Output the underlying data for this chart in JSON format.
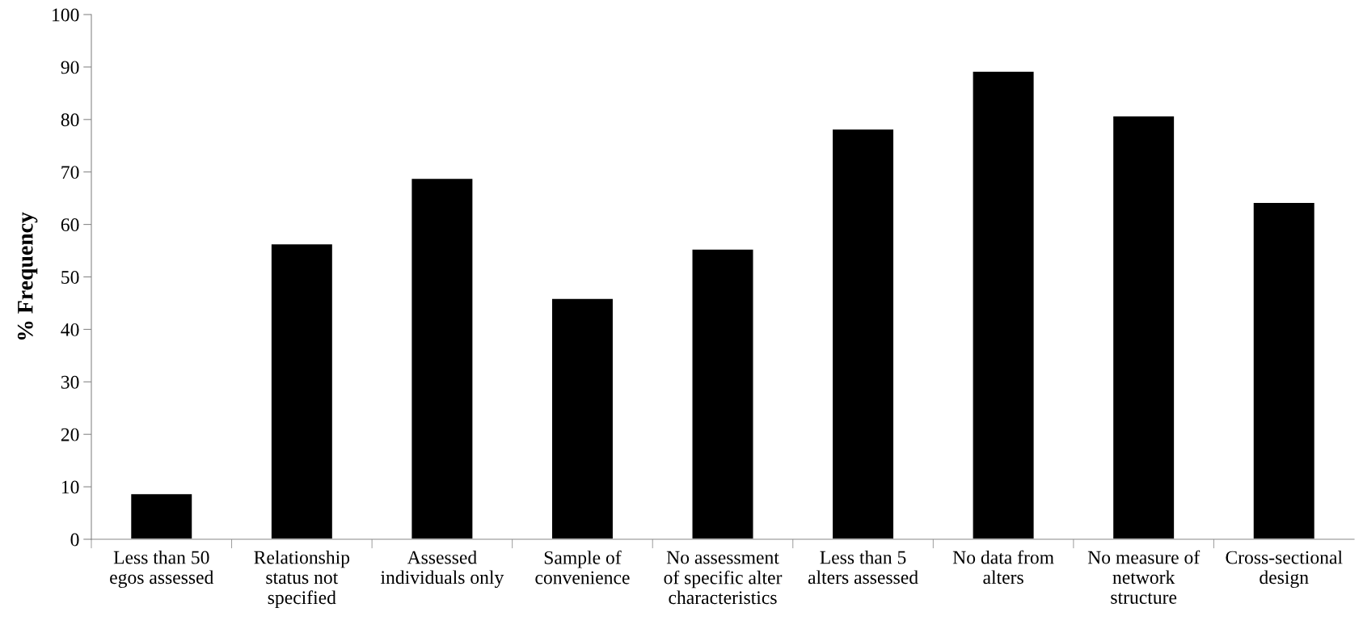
{
  "chart_data": {
    "type": "bar",
    "ylabel": "% Frequency",
    "categories": [
      "Less than 50\negos assessed",
      "Relationship\nstatus not\nspecified",
      "Assessed\nindividuals only",
      "Sample of\nconvenience",
      "No assessment\nof specific alter\ncharacteristics",
      "Less than 5\nalters assessed",
      "No data from\nalters",
      "No measure of\nnetwork\nstructure",
      "Cross-sectional\ndesign"
    ],
    "values": [
      8.7,
      56.3,
      68.8,
      45.9,
      55.3,
      78.2,
      89.2,
      80.7,
      64.2
    ],
    "color": "#000000",
    "ylim": [
      0,
      100
    ],
    "yticks": [
      0,
      10,
      20,
      30,
      40,
      50,
      60,
      70,
      80,
      90,
      100
    ],
    "grid": false,
    "legend": false
  }
}
